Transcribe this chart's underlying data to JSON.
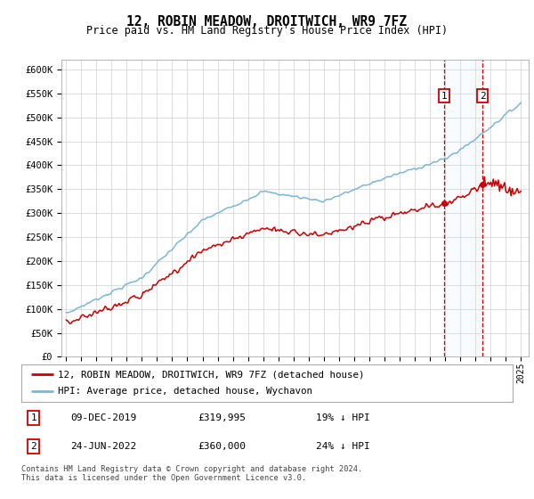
{
  "title": "12, ROBIN MEADOW, DROITWICH, WR9 7FZ",
  "subtitle": "Price paid vs. HM Land Registry's House Price Index (HPI)",
  "legend_line1": "12, ROBIN MEADOW, DROITWICH, WR9 7FZ (detached house)",
  "legend_line2": "HPI: Average price, detached house, Wychavon",
  "annotation1_date": "09-DEC-2019",
  "annotation1_price": "£319,995",
  "annotation1_pct": "19% ↓ HPI",
  "annotation2_date": "24-JUN-2022",
  "annotation2_price": "£360,000",
  "annotation2_pct": "24% ↓ HPI",
  "footer": "Contains HM Land Registry data © Crown copyright and database right 2024.\nThis data is licensed under the Open Government Licence v3.0.",
  "hpi_color": "#7ab8d9",
  "price_color": "#cc0000",
  "vline_color": "#cc0000",
  "box_color": "#cc0000",
  "highlight_color": "#ddeeff",
  "ylim": [
    0,
    620000
  ],
  "yticks": [
    0,
    50000,
    100000,
    150000,
    200000,
    250000,
    300000,
    350000,
    400000,
    450000,
    500000,
    550000,
    600000
  ],
  "xlim_start": 1994.7,
  "xlim_end": 2025.5,
  "t1_year": 2019.92,
  "t2_year": 2022.46,
  "t1_price": 319995,
  "t2_price": 360000
}
